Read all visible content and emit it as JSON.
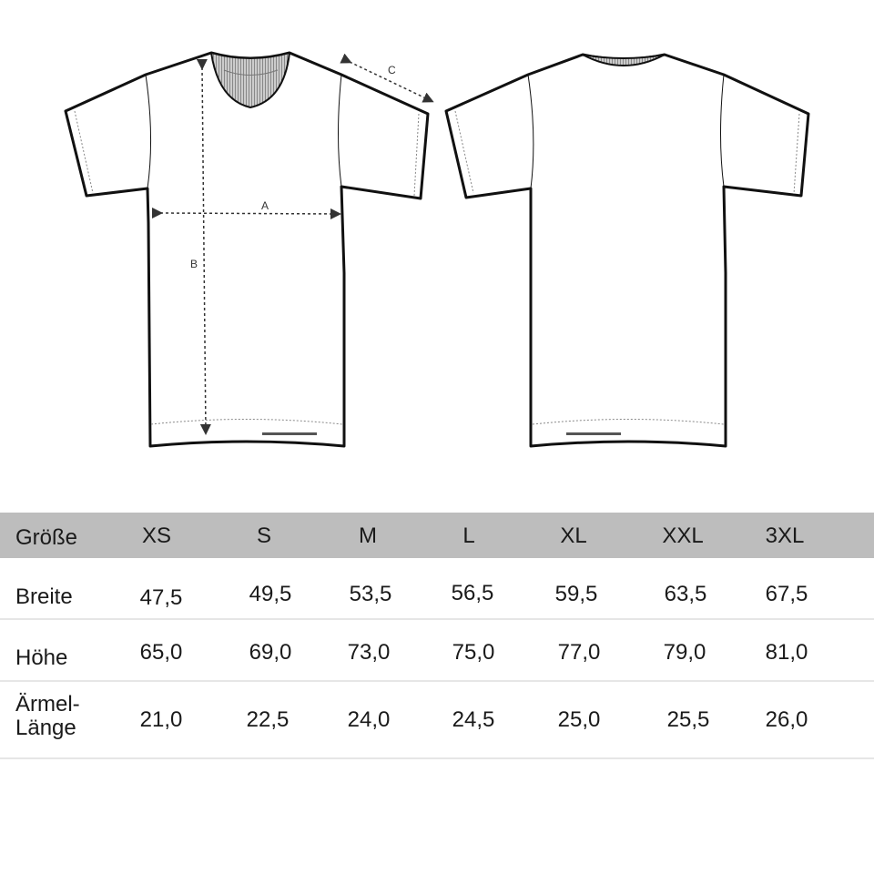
{
  "diagram": {
    "front_labels": {
      "width": "A",
      "length": "B",
      "sleeve": "C"
    }
  },
  "table": {
    "header_label": "Größe",
    "sizes": [
      "XS",
      "S",
      "M",
      "L",
      "XL",
      "XXL",
      "3XL"
    ],
    "rows": [
      {
        "label": "Breite",
        "values": [
          "47,5",
          "49,5",
          "53,5",
          "56,5",
          "59,5",
          "63,5",
          "67,5"
        ]
      },
      {
        "label": "Höhe",
        "values": [
          "65,0",
          "69,0",
          "73,0",
          "75,0",
          "77,0",
          "79,0",
          "81,0"
        ]
      },
      {
        "label": "Ärmel-\nLänge",
        "label_lines": [
          "Ärmel-",
          "Länge"
        ],
        "values": [
          "21,0",
          "22,5",
          "24,0",
          "24,5",
          "25,0",
          "25,5",
          "26,0"
        ]
      }
    ],
    "header_color": "#bdbdbd"
  }
}
